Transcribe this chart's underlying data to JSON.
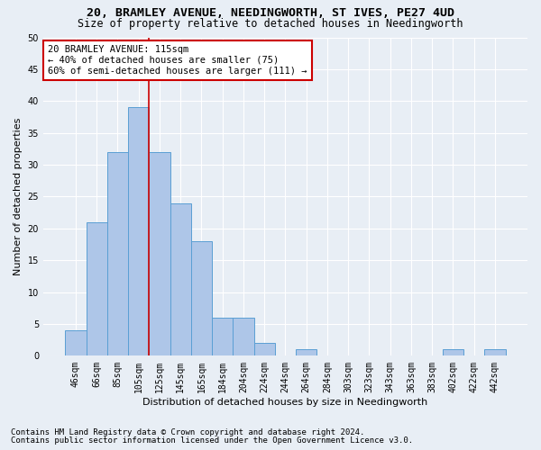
{
  "title1": "20, BRAMLEY AVENUE, NEEDINGWORTH, ST IVES, PE27 4UD",
  "title2": "Size of property relative to detached houses in Needingworth",
  "xlabel": "Distribution of detached houses by size in Needingworth",
  "ylabel": "Number of detached properties",
  "footnote1": "Contains HM Land Registry data © Crown copyright and database right 2024.",
  "footnote2": "Contains public sector information licensed under the Open Government Licence v3.0.",
  "bar_labels": [
    "46sqm",
    "66sqm",
    "85sqm",
    "105sqm",
    "125sqm",
    "145sqm",
    "165sqm",
    "184sqm",
    "204sqm",
    "224sqm",
    "244sqm",
    "264sqm",
    "284sqm",
    "303sqm",
    "323sqm",
    "343sqm",
    "363sqm",
    "383sqm",
    "402sqm",
    "422sqm",
    "442sqm"
  ],
  "bar_values": [
    4,
    21,
    32,
    39,
    32,
    24,
    18,
    6,
    6,
    2,
    0,
    1,
    0,
    0,
    0,
    0,
    0,
    0,
    1,
    0,
    1
  ],
  "bar_color": "#aec6e8",
  "bar_edge_color": "#5a9fd4",
  "vline_x": 3.5,
  "vline_color": "#cc0000",
  "annotation_line1": "20 BRAMLEY AVENUE: 115sqm",
  "annotation_line2": "← 40% of detached houses are smaller (75)",
  "annotation_line3": "60% of semi-detached houses are larger (111) →",
  "annotation_box_color": "#ffffff",
  "annotation_box_edge_color": "#cc0000",
  "ylim": [
    0,
    50
  ],
  "yticks": [
    0,
    5,
    10,
    15,
    20,
    25,
    30,
    35,
    40,
    45,
    50
  ],
  "bg_color": "#e8eef5",
  "grid_color": "#ffffff",
  "title1_fontsize": 9.5,
  "title2_fontsize": 8.5,
  "ylabel_fontsize": 8,
  "xlabel_fontsize": 8,
  "tick_fontsize": 7,
  "annotation_fontsize": 7.5,
  "footnote_fontsize": 6.5
}
